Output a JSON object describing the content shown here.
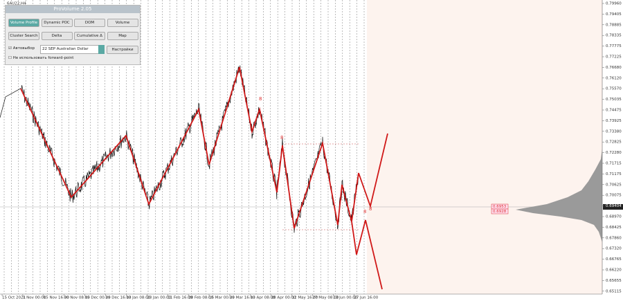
{
  "header": {
    "symbol": "6AU22,H4"
  },
  "panel": {
    "title": "ProVolume 2.05",
    "buttons": [
      "Volume Profile",
      "Dynamic POC",
      "DOM",
      "Volume",
      "Cluster Search",
      "Delta",
      "Cumulative Δ",
      "Map"
    ],
    "auto_select": "Автовыбор",
    "instrument": "22 SEP Australian Dollar",
    "settings": "Настройки",
    "no_forward": "Не использовать forward-point"
  },
  "price_axis": {
    "labels": [
      "0.79960",
      "0.79405",
      "0.78885",
      "0.78335",
      "0.77775",
      "0.77225",
      "0.76680",
      "0.76120",
      "0.75570",
      "0.75035",
      "0.74475",
      "0.73925",
      "0.73380",
      "0.72825",
      "0.72280",
      "0.71715",
      "0.71175",
      "0.70625",
      "0.70075",
      "0.69404",
      "0.68970",
      "0.68425",
      "0.67860",
      "0.67320",
      "0.66765",
      "0.66220",
      "0.65655",
      "0.65115"
    ],
    "current": "0.69404"
  },
  "level_labels": [
    "0.6953",
    "0.6928"
  ],
  "markers": [
    "8",
    "8",
    "8",
    "8"
  ],
  "time_axis": {
    "labels": [
      "15 Oct 2021",
      "1 Nov 00:00",
      "15 Nov 16:00",
      "30 Nov 08:00",
      "15 Dec 00:00",
      "29 Dec 16:00",
      "13 Jan 08:00",
      "28 Jan 00:00",
      "11 Feb 16:00",
      "28 Feb 08:00",
      "15 Mar 00:00",
      "29 Mar 16:00",
      "13 Apr 08:00",
      "28 Apr 00:00",
      "12 May 16:00",
      "27 May 08:00",
      "13 Jun 00:00",
      "27 Jun 16:00"
    ]
  }
}
